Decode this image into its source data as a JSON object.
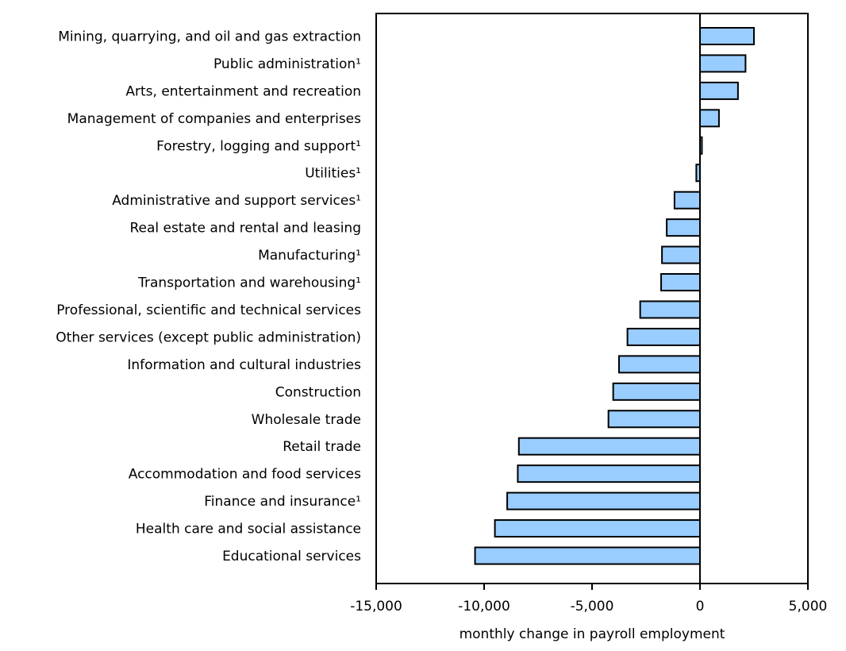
{
  "chart_data": {
    "type": "bar",
    "orientation": "horizontal",
    "title": "",
    "xlabel": "monthly change in payroll employment",
    "ylabel": "",
    "xlim": [
      -15000,
      5000
    ],
    "xticks": [
      -15000,
      -10000,
      -5000,
      0,
      5000
    ],
    "xtick_labels": [
      "-15,000",
      "-10,000",
      "-5,000",
      "0",
      "5,000"
    ],
    "grid": false,
    "bar_color": "#99ccff",
    "bar_edge_color": "#000000",
    "categories": [
      "Mining, quarrying, and oil and gas extraction",
      "Public administration¹",
      "Arts, entertainment and recreation",
      "Management of companies and enterprises",
      "Forestry, logging and support¹",
      "Utilities¹",
      "Administrative and support services¹",
      "Real estate and rental and leasing",
      "Manufacturing¹",
      "Transportation and warehousing¹",
      "Professional, scientific and technical services",
      "Other services (except public administration)",
      "Information and cultural industries",
      "Construction",
      "Wholesale trade",
      "Retail trade",
      "Accommodation and food services",
      "Finance and insurance¹",
      "Health care and social assistance",
      "Educational services"
    ],
    "values": [
      2500,
      2110,
      1760,
      880,
      90,
      -170,
      -1180,
      -1540,
      -1760,
      -1800,
      -2770,
      -3360,
      -3750,
      -4020,
      -4240,
      -8390,
      -8440,
      -8930,
      -9500,
      -10420
    ]
  }
}
